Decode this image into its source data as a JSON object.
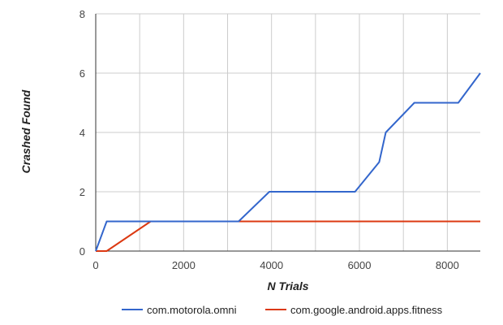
{
  "chart_data": {
    "type": "line",
    "xlabel": "N Trials",
    "ylabel": "Crashed Found",
    "xlim": [
      0,
      8750
    ],
    "ylim": [
      0,
      8
    ],
    "xticks": [
      0,
      2000,
      4000,
      6000,
      8000
    ],
    "yticks": [
      0,
      2,
      4,
      6,
      8
    ],
    "grid": true,
    "legend_position": "bottom",
    "series": [
      {
        "name": "com.motorola.omni",
        "color": "#3366cc",
        "x": [
          0,
          250,
          1250,
          3250,
          3950,
          5900,
          6450,
          6600,
          7250,
          8250,
          8750
        ],
        "y": [
          0,
          1,
          1,
          1,
          2,
          2,
          3,
          4,
          5,
          5,
          6
        ]
      },
      {
        "name": "com.google.android.apps.fitness",
        "color": "#dc3912",
        "x": [
          0,
          250,
          1250,
          8750
        ],
        "y": [
          0,
          0,
          1,
          1
        ]
      }
    ]
  }
}
